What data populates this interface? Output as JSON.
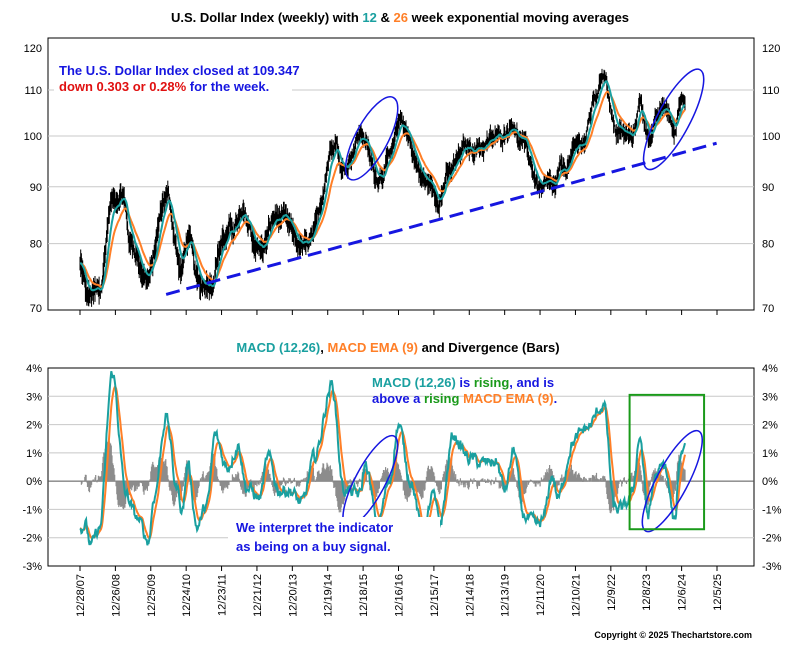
{
  "chart_data": [
    {
      "type": "line",
      "title": {
        "part1": "U.S. Dollar Index (weekly) with ",
        "part2": "12",
        "part3": " & ",
        "part4": "26",
        "part5": " week exponential moving averages"
      },
      "y_ticks": [
        "120",
        "110",
        "100",
        "90",
        "80",
        "70"
      ],
      "ylim": [
        70,
        120
      ],
      "series": [
        {
          "name": "12",
          "color": "#1aa0a0"
        },
        {
          "name": "26",
          "color": "#ff7f27"
        }
      ],
      "price_anchors": [
        [
          "2007-12-28",
          76.5
        ],
        [
          "2008-03-14",
          71.5
        ],
        [
          "2008-07-15",
          72.0
        ],
        [
          "2008-11-21",
          87.5
        ],
        [
          "2009-03-06",
          89.0
        ],
        [
          "2009-06-01",
          80.0
        ],
        [
          "2009-11-27",
          74.5
        ],
        [
          "2010-06-07",
          88.5
        ],
        [
          "2010-11-05",
          75.5
        ],
        [
          "2011-01-07",
          81.0
        ],
        [
          "2011-05-02",
          73.0
        ],
        [
          "2011-09-01",
          74.5
        ],
        [
          "2012-01-13",
          81.0
        ],
        [
          "2012-07-24",
          84.0
        ],
        [
          "2013-02-01",
          79.0
        ],
        [
          "2013-07-08",
          84.5
        ],
        [
          "2014-05-08",
          79.0
        ],
        [
          "2014-07-01",
          80.0
        ],
        [
          "2015-03-13",
          100.0
        ],
        [
          "2015-05-15",
          93.0
        ],
        [
          "2015-12-02",
          100.5
        ],
        [
          "2016-05-02",
          92.0
        ],
        [
          "2016-10-01",
          95.5
        ],
        [
          "2017-01-03",
          103.5
        ],
        [
          "2017-09-08",
          91.0
        ],
        [
          "2018-02-15",
          88.5
        ],
        [
          "2018-05-01",
          92.0
        ],
        [
          "2018-11-15",
          97.5
        ],
        [
          "2019-05-01",
          98.0
        ],
        [
          "2019-10-01",
          99.5
        ],
        [
          "2020-03-20",
          103.0
        ],
        [
          "2020-05-01",
          99.5
        ],
        [
          "2021-01-06",
          89.5
        ],
        [
          "2021-05-25",
          89.5
        ],
        [
          "2021-07-01",
          92.5
        ],
        [
          "2022-03-07",
          99.0
        ],
        [
          "2022-07-14",
          109.0
        ],
        [
          "2022-09-27",
          114.5
        ],
        [
          "2023-01-27",
          101.0
        ],
        [
          "2023-07-14",
          99.5
        ],
        [
          "2023-10-03",
          107.0
        ],
        [
          "2023-12-27",
          100.5
        ],
        [
          "2024-06-26",
          106.0
        ],
        [
          "2024-09-27",
          100.5
        ],
        [
          "2024-11-22",
          108.0
        ],
        [
          "2025-01-10",
          109.347
        ]
      ],
      "trendline": {
        "from": [
          "2010-06-01",
          72.0
        ],
        "to": [
          "2025-12-01",
          98.5
        ]
      },
      "highlight_ellipses": [
        {
          "center": [
            "2016-03-15",
            99.5
          ],
          "span_weeks": 48,
          "span_value": 19
        },
        {
          "center": [
            "2024-09-15",
            103.5
          ],
          "span_weeks": 48,
          "span_value": 24
        }
      ],
      "annotation": {
        "line1": "The U.S. Dollar Index closed at 109.347",
        "line2_red": "down 0.303 or 0.28%",
        "line2_blue": " for the week.",
        "blue": "#1616e0",
        "red": "#e01010"
      }
    },
    {
      "type": "line",
      "title": {
        "part1": "MACD (12,26)",
        "part2": ", ",
        "part3": "MACD EMA (9)",
        "part4": " and Divergence (Bars)"
      },
      "y_ticks": [
        "4%",
        "3%",
        "2%",
        "1%",
        "0%",
        "-1%",
        "-2%",
        "-3%"
      ],
      "ylim": [
        -3,
        4
      ],
      "series": [
        {
          "name": "MACD (12,26)",
          "color": "#1aa0a0"
        },
        {
          "name": "MACD EMA (9)",
          "color": "#ff7f27"
        },
        {
          "name": "Divergence (Bars)",
          "color": "#8c8c8c"
        }
      ],
      "macd_anchors": [
        [
          "2007-12-28",
          -1.7
        ],
        [
          "2008-02-15",
          -1.5
        ],
        [
          "2008-04-20",
          -2.3
        ],
        [
          "2008-07-15",
          -1.7
        ],
        [
          "2008-11-25",
          3.8
        ],
        [
          "2009-04-15",
          -0.5
        ],
        [
          "2009-08-01",
          -1.3
        ],
        [
          "2009-12-01",
          -2.1
        ],
        [
          "2010-01-30",
          -0.5
        ],
        [
          "2010-06-01",
          2.3
        ],
        [
          "2010-09-15",
          -0.2
        ],
        [
          "2010-11-15",
          -1.0
        ],
        [
          "2011-01-10",
          0.6
        ],
        [
          "2011-04-15",
          -1.6
        ],
        [
          "2011-08-01",
          -0.8
        ],
        [
          "2011-10-15",
          1.6
        ],
        [
          "2012-02-15",
          0.5
        ],
        [
          "2012-06-15",
          1.3
        ],
        [
          "2012-09-01",
          -0.2
        ],
        [
          "2013-01-15",
          -0.6
        ],
        [
          "2013-04-15",
          0.8
        ],
        [
          "2013-08-01",
          -0.3
        ],
        [
          "2013-11-15",
          -0.3
        ],
        [
          "2014-04-01",
          -0.8
        ],
        [
          "2014-08-01",
          0.8
        ],
        [
          "2015-02-01",
          3.4
        ],
        [
          "2015-06-01",
          -0.3
        ],
        [
          "2015-11-15",
          -0.5
        ],
        [
          "2016-01-10",
          0.6
        ],
        [
          "2016-05-15",
          -1.5
        ],
        [
          "2016-09-15",
          0.0
        ],
        [
          "2016-12-15",
          2.0
        ],
        [
          "2017-04-15",
          0.1
        ],
        [
          "2017-09-01",
          -2.0
        ],
        [
          "2017-12-01",
          -0.5
        ],
        [
          "2018-02-15",
          -1.5
        ],
        [
          "2018-07-01",
          1.6
        ],
        [
          "2018-12-15",
          0.8
        ],
        [
          "2019-05-01",
          0.6
        ],
        [
          "2019-09-15",
          0.7
        ],
        [
          "2019-12-15",
          -0.3
        ],
        [
          "2020-03-20",
          1.1
        ],
        [
          "2020-06-15",
          -1.2
        ],
        [
          "2020-11-15",
          -1.6
        ],
        [
          "2021-01-10",
          -1.4
        ],
        [
          "2021-04-15",
          0.2
        ],
        [
          "2021-06-15",
          -0.6
        ],
        [
          "2021-11-15",
          1.4
        ],
        [
          "2022-04-15",
          1.9
        ],
        [
          "2022-09-27",
          2.7
        ],
        [
          "2023-01-15",
          -1.0
        ],
        [
          "2023-04-15",
          -1.0
        ],
        [
          "2023-07-15",
          -0.5
        ],
        [
          "2023-10-03",
          1.6
        ],
        [
          "2023-12-27",
          -1.2
        ],
        [
          "2024-03-15",
          0.2
        ],
        [
          "2024-06-15",
          0.5
        ],
        [
          "2024-09-27",
          -1.5
        ],
        [
          "2024-11-22",
          0.9
        ],
        [
          "2025-01-10",
          1.4
        ]
      ],
      "highlight_ellipse": {
        "center": [
          "2016-03-01",
          0.0
        ],
        "span_weeks": 44,
        "span_value": 3.6
      },
      "highlight_ellipse_2": {
        "center": [
          "2024-09-01",
          0.0
        ],
        "span_weeks": 46,
        "span_value": 4.0
      },
      "highlight_box": {
        "from": [
          "2023-06-20",
          -1.7
        ],
        "to": [
          "2025-07-25",
          3.05
        ]
      },
      "annotation": {
        "part1": "MACD (12,26)",
        "part2": " is ",
        "part3": "rising",
        "part4": ", and is",
        "part5": "above a ",
        "part6": "rising",
        "part7": " ",
        "part8": "MACD EMA (9)",
        "part9": ".",
        "teal": "#1aa0a0",
        "blue": "#1616e0",
        "green": "#1a9a1a",
        "orange": "#ff7f27"
      },
      "buy_note": {
        "line1": "We interpret the indicator",
        "line2": "as being on a buy signal.",
        "color": "#1616e0"
      }
    }
  ],
  "x_axis": {
    "tick_dates": [
      "2007-12-28",
      "2008-12-26",
      "2009-12-25",
      "2010-12-24",
      "2011-12-23",
      "2012-12-21",
      "2013-12-20",
      "2014-12-19",
      "2015-12-18",
      "2016-12-16",
      "2017-12-15",
      "2018-12-14",
      "2019-12-13",
      "2020-12-11",
      "2021-12-10",
      "2022-12-09",
      "2023-12-08",
      "2024-12-06",
      "2025-12-05"
    ],
    "tick_labels": [
      "12/28/07",
      "12/26/08",
      "12/25/09",
      "12/24/10",
      "12/23/11",
      "12/21/12",
      "12/20/13",
      "12/19/14",
      "12/18/15",
      "12/16/16",
      "12/15/17",
      "12/14/18",
      "12/13/19",
      "12/11/20",
      "12/10/21",
      "12/9/22",
      "12/8/23",
      "12/6/24",
      "12/5/25"
    ]
  },
  "copyright": "Copyright © 2025 Thechartstore.com"
}
